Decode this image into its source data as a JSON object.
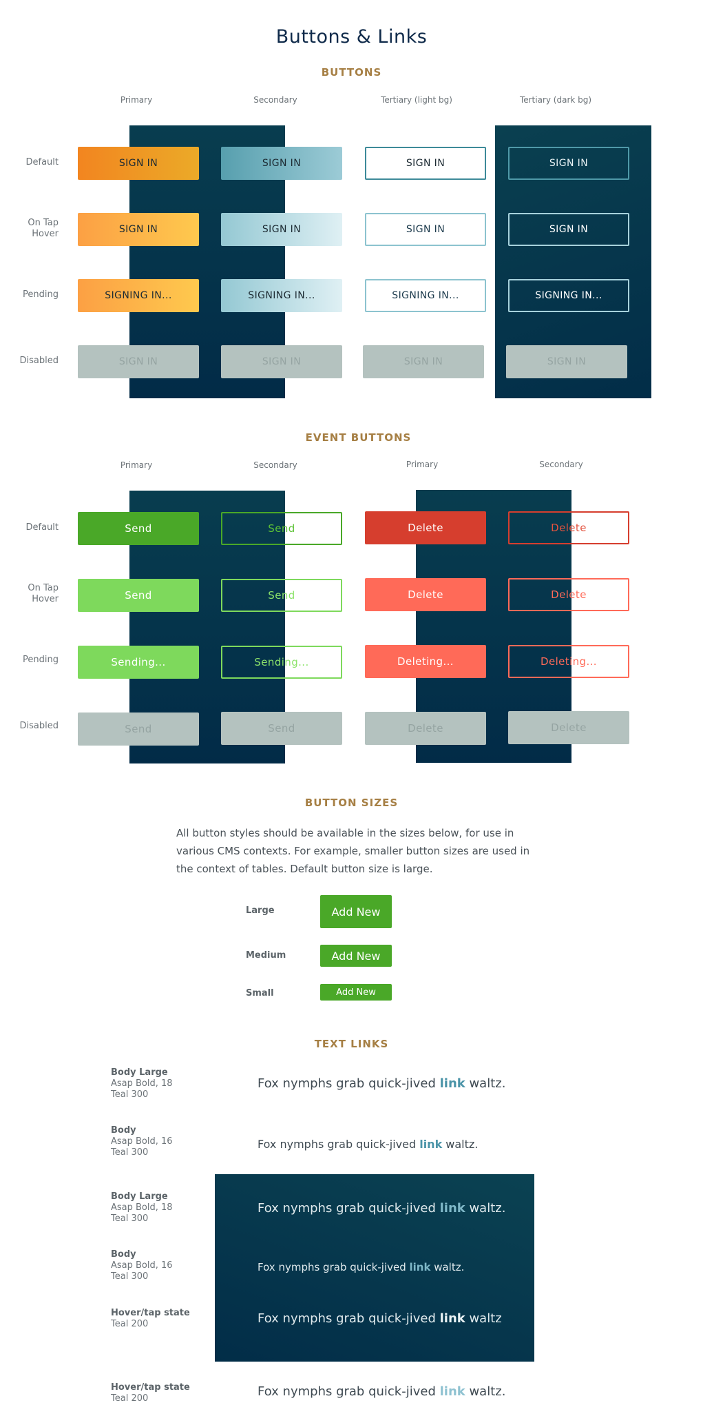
{
  "title": "Buttons & Links",
  "sections": {
    "buttons": "BUTTONS",
    "event_buttons": "EVENT BUTTONS",
    "button_sizes": "BUTTON SIZES",
    "text_links": "TEXT LINKS"
  },
  "buttons": {
    "columns": [
      "Primary",
      "Secondary",
      "Tertiary (light bg)",
      "Tertiary (dark bg)"
    ],
    "rows": [
      "Default",
      "On Tap\nHover",
      "Pending",
      "Disabled"
    ],
    "labels": {
      "default": "SIGN IN",
      "hover": "SIGN IN",
      "pending": "SIGNING IN...",
      "disabled": "SIGN IN"
    }
  },
  "event_buttons": {
    "columns": [
      "Primary",
      "Secondary",
      "Primary",
      "Secondary"
    ],
    "rows": [
      "Default",
      "On Tap\nHover",
      "Pending",
      "Disabled"
    ],
    "send": {
      "default": "Send",
      "hover": "Send",
      "pending": "Sending...",
      "disabled": "Send"
    },
    "delete": {
      "default": "Delete",
      "hover": "Delete",
      "pending": "Deleting...",
      "disabled": "Delete"
    }
  },
  "button_sizes": {
    "description": "All button styles should be available in the sizes below, for use in various CMS contexts. For example, smaller button sizes are used in the context of tables. Default button size is large.",
    "sizes": [
      {
        "label": "Large",
        "button": "Add New"
      },
      {
        "label": "Medium",
        "button": "Add New"
      },
      {
        "label": "Small",
        "button": "Add New"
      }
    ]
  },
  "text_links": {
    "rows": [
      {
        "name": "Body Large",
        "font": "Asap Bold, 18",
        "color": "Teal 300",
        "before": "Fox nymphs grab quick-jived ",
        "link": "link",
        "after": " waltz."
      },
      {
        "name": "Body",
        "font": "Asap Bold, 16",
        "color": "Teal 300",
        "before": "Fox nymphs grab quick-jived ",
        "link": "link",
        "after": " waltz."
      },
      {
        "name": "Body Large",
        "font": "Asap Bold, 18",
        "color": "Teal 300",
        "before": "Fox nymphs grab quick-jived ",
        "link": "link",
        "after": " waltz."
      },
      {
        "name": "Body",
        "font": "Asap Bold, 16",
        "color": "Teal 300",
        "before": "Fox nymphs grab quick-jived ",
        "link": "link",
        "after": " waltz."
      },
      {
        "name": "Hover/tap state",
        "color": "Teal 200",
        "before": "Fox nymphs grab quick-jived ",
        "link": "link",
        "after": " waltz"
      },
      {
        "name": "Hover/tap state",
        "color": "Teal 200",
        "before": "Fox nymphs grab quick-jived ",
        "link": "link",
        "after": " waltz."
      }
    ]
  },
  "colors": {
    "heading_navy": "#0f2a4a",
    "section_gold": "#a67f44",
    "panel_dark": "#022b47",
    "orange": "#f28520",
    "teal": "#579fae",
    "green": "#4aa828",
    "red": "#d63e2e",
    "disabled": "#b4c2bf",
    "link_teal_300": "#4b94a8",
    "link_teal_200": "#8fc2d1"
  }
}
